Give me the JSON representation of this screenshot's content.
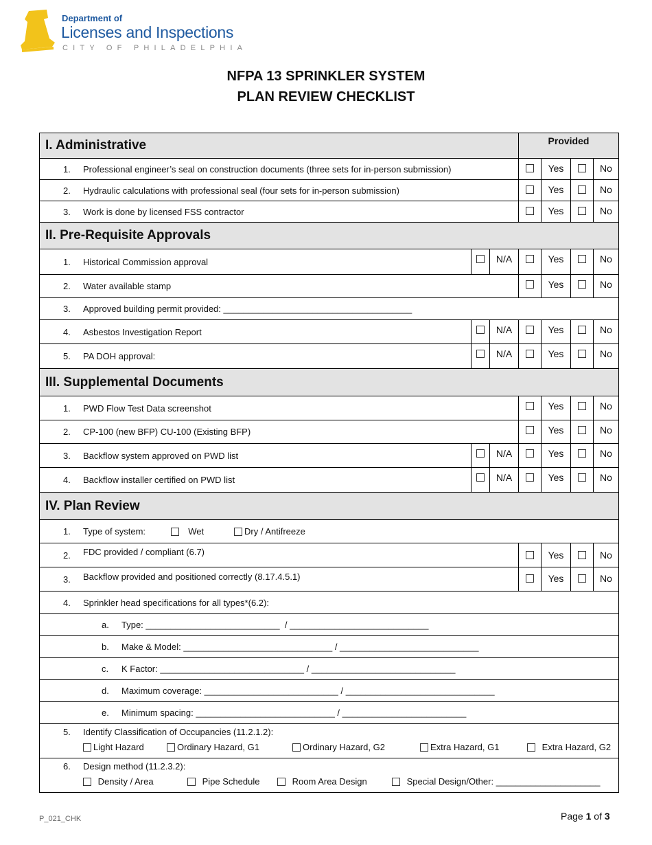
{
  "logo": {
    "line1": "Department of",
    "line2": "Licenses and Inspections",
    "line3": "CITY OF PHILADELPHIA",
    "colors": {
      "bell": "#f2c31b",
      "text": "#1f5aa0"
    }
  },
  "title": {
    "line1": "NFPA 13 SPRINKLER SYSTEM",
    "line2": "PLAN REVIEW CHECKLIST"
  },
  "labels": {
    "provided": "Provided",
    "na": "N/A",
    "yes": "Yes",
    "no": "No"
  },
  "sections": [
    {
      "title": "I.   Administrative",
      "items": [
        {
          "num": "1.",
          "text": "Professional engineer’s seal on construction documents (three sets for in-person submission)"
        },
        {
          "num": "2.",
          "text": "Hydraulic calculations with professional seal (four sets for in-person submission)"
        },
        {
          "num": "3.",
          "text": "Work is done by licensed FSS contractor"
        }
      ]
    },
    {
      "title": "II. Pre-Requisite Approvals",
      "items": [
        {
          "num": "1.",
          "text": "Historical Commission approval"
        },
        {
          "num": "2.",
          "text": "Water available stamp"
        },
        {
          "num": "3.",
          "text": "Approved building permit provided: ______________________________________"
        },
        {
          "num": "4.",
          "text": "Asbestos Investigation Report"
        },
        {
          "num": "5.",
          "text": "PA DOH approval:"
        }
      ]
    },
    {
      "title": "III. Supplemental Documents",
      "items": [
        {
          "num": "1.",
          "text": "PWD Flow Test Data screenshot"
        },
        {
          "num": "2.",
          "text": "CP-100 (new BFP) CU-100 (Existing BFP)"
        },
        {
          "num": "3.",
          "text": "Backflow system approved on PWD list"
        },
        {
          "num": "4.",
          "text": "Backflow installer certified on PWD list"
        }
      ]
    },
    {
      "title": "IV. Plan Review",
      "items": [
        {
          "num": "1.",
          "text": "Type of system:",
          "options": [
            "Wet",
            "Dry / Antifreeze"
          ]
        },
        {
          "num": "2.",
          "text": "FDC provided / compliant (6.7)"
        },
        {
          "num": "3.",
          "text": "Backflow provided and positioned correctly (8.17.4.5.1)"
        },
        {
          "num": "4.",
          "text": "Sprinkler head specifications for all types*(6.2):",
          "sub": [
            {
              "letter": "a.",
              "text": "Type: ___________________________  / ____________________________"
            },
            {
              "letter": "b.",
              "text": "Make & Model: ______________________________ / ____________________________"
            },
            {
              "letter": "c.",
              "text": "K Factor: _____________________________ / _____________________________"
            },
            {
              "letter": "d.",
              "text": "Maximum coverage: ___________________________ / ______________________________"
            },
            {
              "letter": "e.",
              "text": "Minimum spacing: ____________________________ / _________________________"
            }
          ]
        },
        {
          "num": "5.",
          "text": "Identify Classification of Occupancies (11.2.1.2):",
          "options": [
            "Light Hazard",
            "Ordinary Hazard, G1",
            "Ordinary Hazard, G2",
            "Extra Hazard, G1",
            "Extra Hazard, G2"
          ]
        },
        {
          "num": "6.",
          "text": "Design method (11.2.3.2):",
          "options": [
            "Density / Area",
            "Pipe Schedule",
            "Room Area Design",
            "Special Design/Other: _____________________"
          ]
        }
      ]
    }
  ],
  "footer": {
    "code": "P_021_CHK",
    "page_prefix": "Page ",
    "page": "1",
    "of": " of ",
    "total": "3"
  }
}
